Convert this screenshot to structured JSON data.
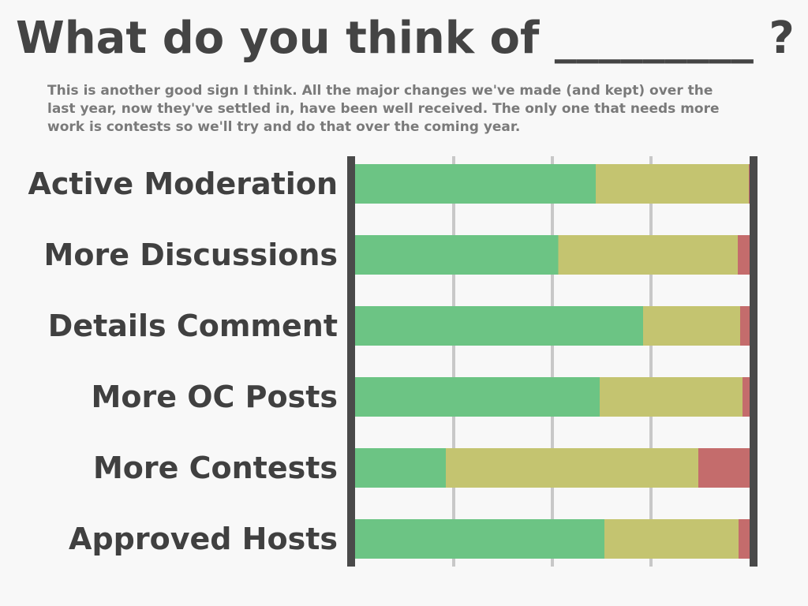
{
  "header": {
    "title": "What do you think of _________ ?",
    "subtitle": "This is another good sign I think. All the major changes we've made (and kept) over the last year, now they've settled in, have been well received. The only one that needs more work is contests so we'll try and do that over the coming year."
  },
  "colors": {
    "positive": "#6cc484",
    "neutral": "#c4c470",
    "negative": "#c46c6c",
    "axis": "#4a4a4a",
    "grid": "#c8c8c8",
    "background": "#f8f8f8"
  },
  "chart_data": {
    "type": "bar",
    "orientation": "horizontal",
    "stacked": true,
    "normalized": true,
    "categories": [
      "Active Moderation",
      "More Discussions",
      "Details Comment",
      "More OC Posts",
      "More Contests",
      "Approved Hosts"
    ],
    "series": [
      {
        "key": "positive",
        "values": [
          0.61,
          0.515,
          0.73,
          0.62,
          0.23,
          0.632
        ]
      },
      {
        "key": "neutral",
        "values": [
          0.388,
          0.455,
          0.246,
          0.362,
          0.64,
          0.34
        ]
      },
      {
        "key": "negative",
        "values": [
          0.002,
          0.03,
          0.024,
          0.018,
          0.13,
          0.028
        ]
      }
    ],
    "xlim": [
      0,
      1
    ],
    "grid": true,
    "legend": "none"
  }
}
